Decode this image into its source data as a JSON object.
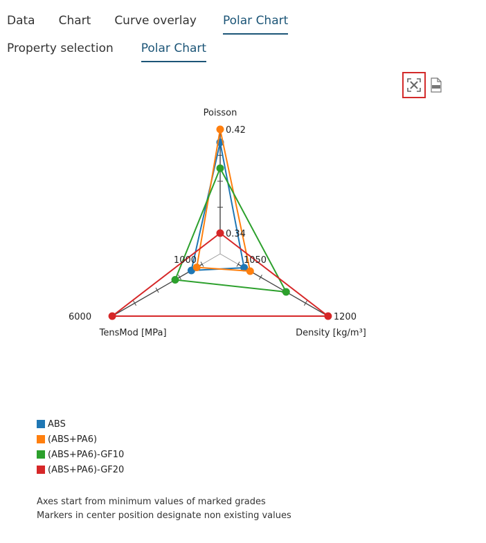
{
  "tabs": [
    "Data",
    "Chart",
    "Curve overlay",
    "Polar Chart"
  ],
  "active_tab": 3,
  "subtabs": [
    "Property selection",
    "Polar Chart"
  ],
  "active_subtab": 1,
  "toolbar": {
    "expand_icon": "expand-icon",
    "pdf_icon": "pdf-export-icon"
  },
  "chart_data": {
    "type": "radar",
    "axes": [
      {
        "name": "Poisson",
        "min": 0.34,
        "max": 0.42,
        "min_label": "0.34",
        "max_label": "0.42"
      },
      {
        "name": "Density [kg/m³]",
        "min": 1050,
        "max": 1200,
        "min_label": "1050",
        "max_label": "1200"
      },
      {
        "name": "TensMod [MPa]",
        "min": 1000,
        "max": 6000,
        "min_label": "1000",
        "max_label": "6000"
      }
    ],
    "series": [
      {
        "name": "ABS",
        "color": "#1f77b4",
        "values": [
          0.41,
          1060,
          1600
        ]
      },
      {
        "name": "(ABS+PA6)",
        "color": "#ff7f0e",
        "values": [
          0.42,
          1070,
          1300
        ]
      },
      {
        "name": "(ABS+PA6)-GF10",
        "color": "#2ca02c",
        "values": [
          0.39,
          1130,
          2500
        ]
      },
      {
        "name": "(ABS+PA6)-GF20",
        "color": "#d62728",
        "values": [
          0.34,
          1200,
          6000
        ]
      }
    ]
  },
  "notes": [
    "Axes start from minimum values of marked grades",
    "Markers in center position designate non existing values"
  ]
}
